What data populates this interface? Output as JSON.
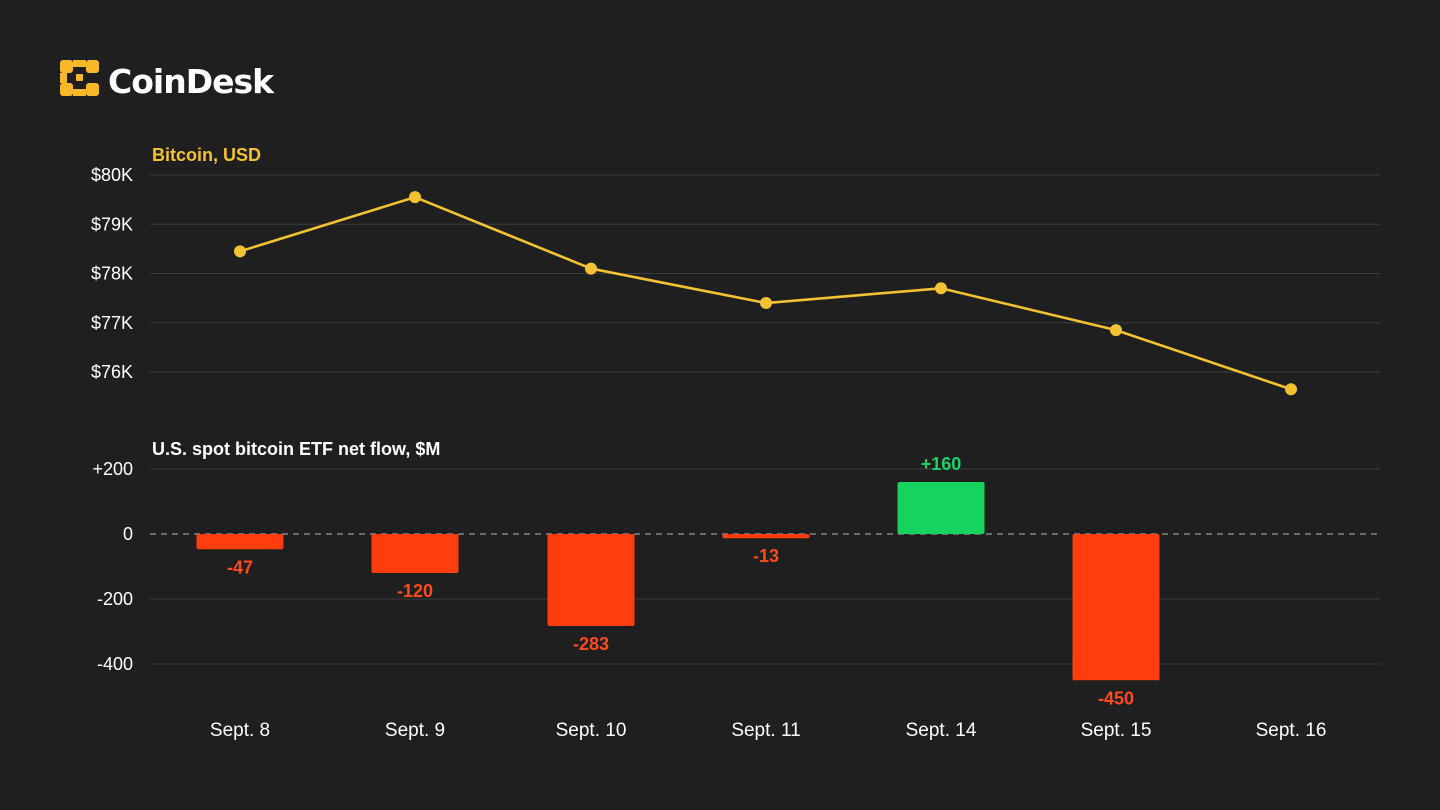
{
  "brand": {
    "name": "CoinDesk",
    "accent_color": "#f7b927"
  },
  "chart_data": [
    {
      "type": "line",
      "title": "Bitcoin, USD",
      "x": [
        "Sept. 8",
        "Sept. 9",
        "Sept. 10",
        "Sept. 11",
        "Sept. 14",
        "Sept. 15",
        "Sept. 16"
      ],
      "series": [
        {
          "values": [
            78450,
            79550,
            78100,
            77400,
            77700,
            76850,
            75650
          ],
          "color": "#f2c232"
        }
      ],
      "yticks": [
        "$80K",
        "$79K",
        "$78K",
        "$77K",
        "$76K"
      ],
      "ytick_values": [
        80000,
        79000,
        78000,
        77000,
        76000
      ],
      "ylim": [
        75700,
        80000
      ],
      "grid": true
    },
    {
      "type": "bar",
      "title": "U.S. spot bitcoin ETF net flow, $M",
      "categories": [
        "Sept. 8",
        "Sept. 9",
        "Sept. 10",
        "Sept. 11",
        "Sept. 14",
        "Sept. 15"
      ],
      "values": [
        -47,
        -120,
        -283,
        -13,
        160,
        -450
      ],
      "labels": [
        "-47",
        "-120",
        "-283",
        "-13",
        "+160",
        "-450"
      ],
      "yticks": [
        "+200",
        "0",
        "-200",
        "-400"
      ],
      "ytick_values": [
        200,
        0,
        -200,
        -400
      ],
      "ylim": [
        -450,
        200
      ],
      "grid": true,
      "colors": {
        "negative": "#ff3d0f",
        "positive": "#14d45f",
        "negative_label": "#ff4a1c",
        "positive_label": "#1bd064"
      }
    }
  ],
  "x_axis_labels": [
    "Sept. 8",
    "Sept. 9",
    "Sept. 10",
    "Sept. 11",
    "Sept. 14",
    "Sept. 15",
    "Sept. 16"
  ]
}
